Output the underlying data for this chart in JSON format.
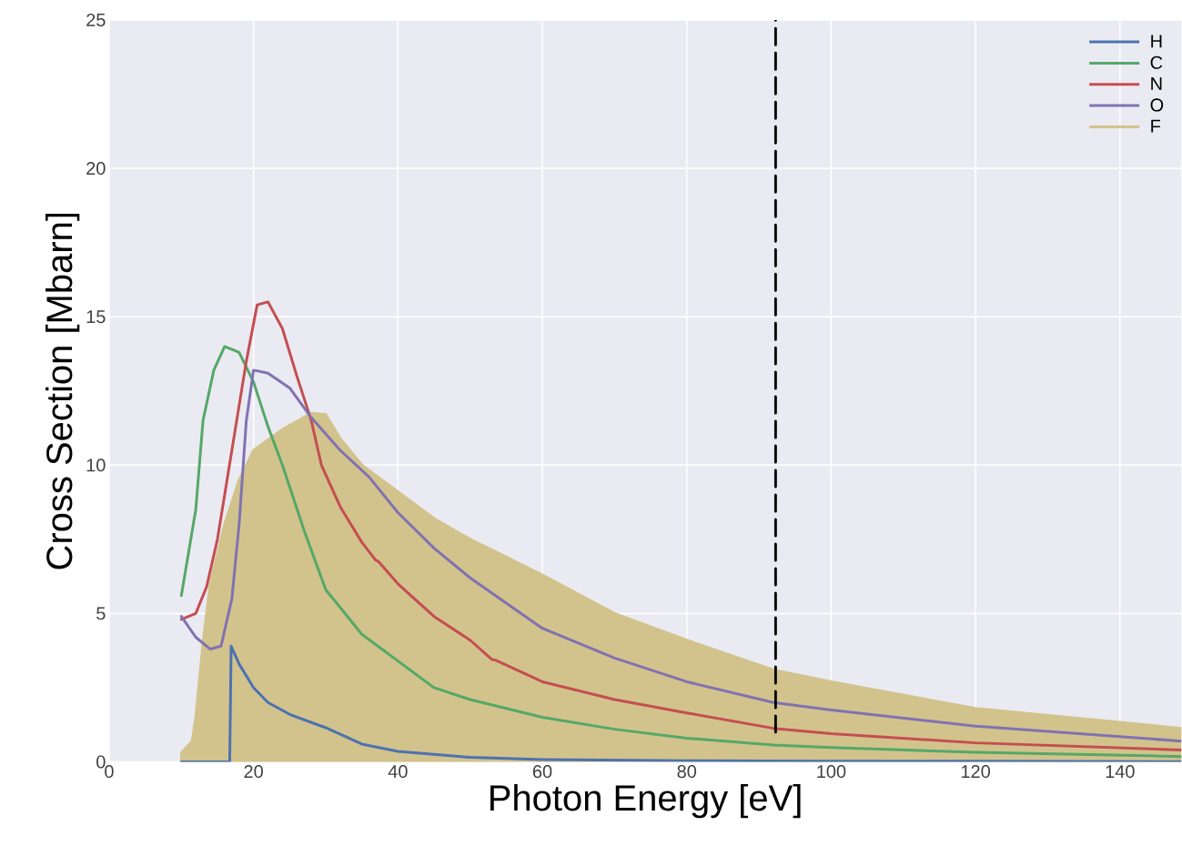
{
  "chart_data": {
    "type": "line",
    "xlabel": "Photon Energy [eV]",
    "ylabel": "Cross Section [Mbarn]",
    "xlim": [
      0,
      148.5
    ],
    "ylim": [
      0,
      25
    ],
    "xticks": [
      0,
      20,
      40,
      60,
      80,
      100,
      120,
      140
    ],
    "yticks": [
      0,
      5,
      10,
      15,
      20,
      25
    ],
    "grid": true,
    "legend": "top right",
    "marker": "none",
    "line_style": "solid",
    "series": [
      {
        "name": "H",
        "color": "#4c72b0",
        "x": [
          10,
          16.7,
          16.9,
          18,
          20,
          22,
          25,
          30,
          35,
          40,
          50,
          60,
          80,
          100,
          120,
          148.5
        ],
        "values": [
          0,
          0,
          3.9,
          3.3,
          2.5,
          2.0,
          1.6,
          1.15,
          0.6,
          0.35,
          0.15,
          0.08,
          0.04,
          0.02,
          0.02,
          0.01
        ]
      },
      {
        "name": "C",
        "color": "#55a868",
        "x": [
          10,
          12,
          13,
          14.5,
          16,
          18,
          20,
          22,
          24,
          27,
          30,
          35,
          40,
          45,
          50,
          60,
          70,
          80,
          92,
          100,
          120,
          148.5
        ],
        "values": [
          5.6,
          8.5,
          11.5,
          13.2,
          14.0,
          13.8,
          12.8,
          11.3,
          10.0,
          7.8,
          5.8,
          4.3,
          3.4,
          2.5,
          2.1,
          1.5,
          1.1,
          0.8,
          0.57,
          0.48,
          0.32,
          0.18
        ]
      },
      {
        "name": "N",
        "color": "#c44e52",
        "x": [
          10,
          12,
          13.5,
          15,
          17,
          19,
          20.5,
          22,
          24,
          26,
          28,
          29.4,
          32,
          35,
          36.9,
          37.3,
          40,
          45,
          50,
          53,
          53.5,
          60,
          70,
          80,
          92,
          100,
          120,
          148.5
        ],
        "values": [
          4.8,
          5.0,
          5.9,
          7.5,
          10.5,
          13.5,
          15.4,
          15.5,
          14.6,
          13.0,
          11.5,
          10.0,
          8.6,
          7.4,
          6.8,
          6.75,
          6.0,
          4.9,
          4.1,
          3.45,
          3.43,
          2.7,
          2.1,
          1.65,
          1.13,
          0.95,
          0.64,
          0.4
        ]
      },
      {
        "name": "O",
        "color": "#8172b2",
        "x": [
          10,
          12,
          14,
          15.5,
          17,
          18,
          19,
          20,
          22,
          25,
          28,
          32,
          36,
          40,
          45,
          50,
          60,
          70,
          80,
          92,
          100,
          120,
          148.5
        ],
        "values": [
          4.9,
          4.2,
          3.8,
          3.9,
          5.5,
          8,
          11.5,
          13.2,
          13.1,
          12.6,
          11.6,
          10.5,
          9.6,
          8.4,
          7.2,
          6.2,
          4.5,
          3.5,
          2.7,
          2.0,
          1.75,
          1.2,
          0.7
        ]
      },
      {
        "name": "F",
        "color": "#d2c38c",
        "type": "area",
        "x": [
          10,
          11.5,
          12,
          13,
          14,
          16,
          18,
          20,
          24,
          28,
          30,
          32,
          35,
          40,
          45,
          50,
          55,
          60,
          70,
          80,
          92,
          100,
          120,
          148.5
        ],
        "values": [
          0.3,
          0.7,
          1.5,
          4,
          6,
          8,
          9.5,
          10.5,
          11.2,
          11.75,
          11.7,
          10.9,
          10.0,
          9.1,
          8.2,
          7.5,
          6.9,
          6.3,
          5.0,
          4.1,
          3.1,
          2.7,
          1.8,
          1.13
        ]
      },
      {
        "color": "#000000",
        "line_style": "dashed",
        "x": [
          92.3,
          92.3
        ],
        "values": [
          1.0,
          25
        ]
      }
    ]
  }
}
